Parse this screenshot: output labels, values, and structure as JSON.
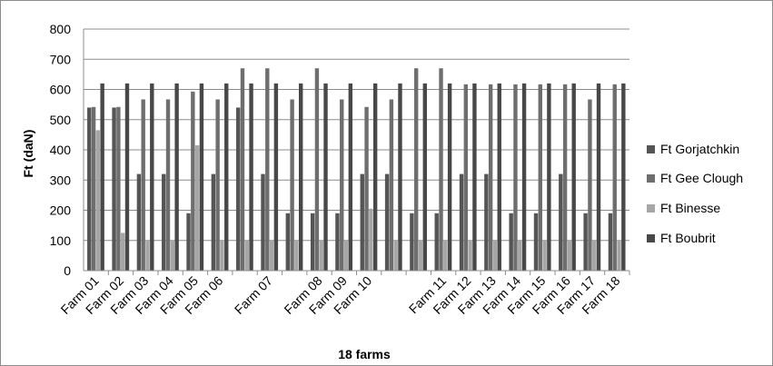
{
  "chart_data": {
    "type": "bar",
    "title": "",
    "xlabel": "18 farms",
    "ylabel": "Ft (daN)",
    "ylim": [
      0,
      800
    ],
    "yticks": [
      "0",
      "100",
      "200",
      "300",
      "400",
      "500",
      "600",
      "700",
      "800"
    ],
    "grid": true,
    "legend_position": "right",
    "categories": [
      "Farm 01",
      "Farm 02",
      "Farm 03",
      "Farm 04",
      "Farm 05",
      "Farm 06",
      "",
      "Farm 07",
      "",
      "Farm 08",
      "Farm 09",
      "Farm 10",
      "",
      "",
      "Farm 11",
      "Farm 12",
      "Farm 13",
      "Farm 14",
      "Farm 15",
      "Farm 16",
      "Farm 17",
      "Farm 18"
    ],
    "series": [
      {
        "name": "Ft Gorjatchkin",
        "color": "#555555",
        "values": [
          540,
          540,
          320,
          320,
          190,
          320,
          540,
          320,
          190,
          190,
          190,
          320,
          320,
          190,
          190,
          320,
          320,
          190,
          190,
          320,
          190,
          190
        ]
      },
      {
        "name": "Ft Gee Clough",
        "color": "#6e6e6e",
        "values": [
          542,
          542,
          567,
          567,
          593,
          567,
          670,
          670,
          567,
          670,
          567,
          542,
          567,
          670,
          670,
          617,
          617,
          617,
          617,
          617,
          567,
          617
        ]
      },
      {
        "name": "Ft Binesse",
        "color": "#a6a6a6",
        "values": [
          465,
          125,
          100,
          100,
          415,
          100,
          100,
          100,
          100,
          100,
          100,
          205,
          100,
          100,
          100,
          100,
          100,
          100,
          100,
          100,
          100,
          100
        ]
      },
      {
        "name": "Ft Boubrit",
        "color": "#484848",
        "values": [
          620,
          620,
          620,
          620,
          620,
          620,
          620,
          620,
          620,
          620,
          620,
          620,
          620,
          620,
          620,
          620,
          620,
          620,
          620,
          620,
          620,
          620
        ]
      }
    ]
  }
}
